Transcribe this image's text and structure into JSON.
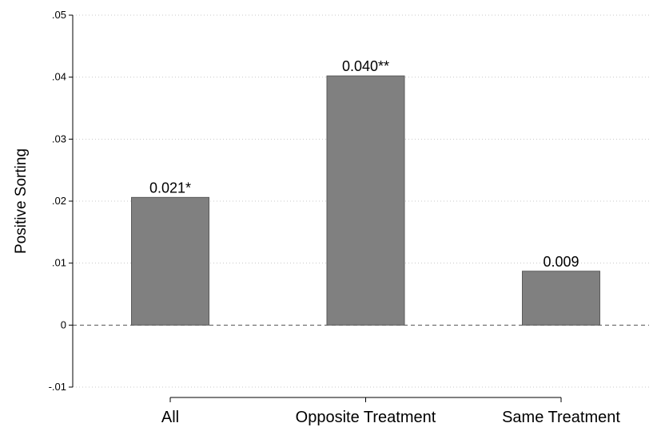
{
  "chart_data": {
    "type": "bar",
    "title": "",
    "xlabel": "",
    "ylabel": "Positive Sorting",
    "categories": [
      "All",
      "Opposite Treatment",
      "Same Treatment"
    ],
    "values": [
      0.0206,
      0.0402,
      0.0087
    ],
    "data_labels": [
      "0.021*",
      "0.040**",
      "0.009"
    ],
    "ylim": [
      -0.01,
      0.05
    ],
    "yticks": [
      -0.01,
      0,
      0.01,
      0.02,
      0.03,
      0.04,
      0.05
    ],
    "ytick_labels": [
      "-.01",
      "0",
      ".01",
      ".02",
      ".03",
      ".04",
      ".05"
    ],
    "grid": true,
    "zero_line": "dashed",
    "bar_color": "#808080",
    "bar_edge_color": "#5a5a5a"
  }
}
